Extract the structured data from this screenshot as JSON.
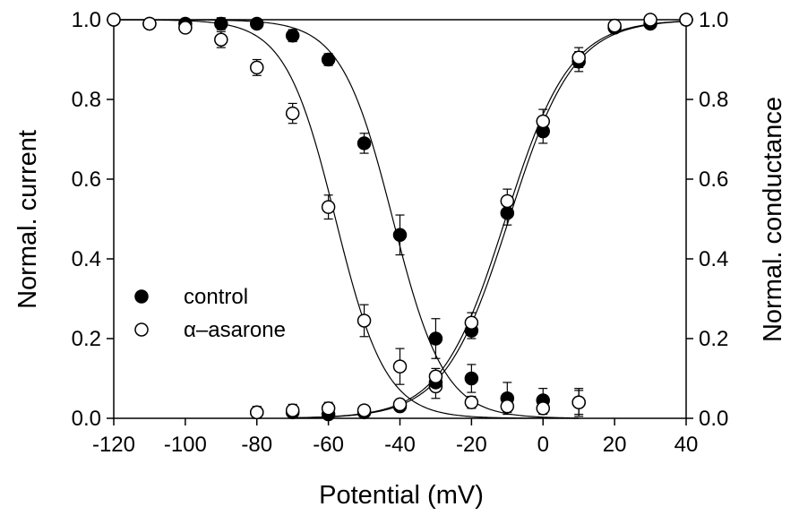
{
  "chart_data": {
    "type": "scatter",
    "xlabel": "Potential (mV)",
    "ylabel_left": "Normal. current",
    "ylabel_right": "Normal. conductance",
    "xlim": [
      -120,
      40
    ],
    "ylim": [
      0,
      1
    ],
    "x_ticks": [
      -120,
      -100,
      -80,
      -60,
      -40,
      -20,
      0,
      20,
      40
    ],
    "x_tick_labels": [
      "-120",
      "-100",
      "-80",
      "-60",
      "-40",
      "-20",
      "0",
      "20",
      "40"
    ],
    "y_ticks": [
      0,
      0.2,
      0.4,
      0.6,
      0.8,
      1.0
    ],
    "y_tick_labels": [
      "0.0",
      "0.2",
      "0.4",
      "0.6",
      "0.8",
      "1.0"
    ],
    "legend": [
      {
        "label": "control",
        "marker": "filled-circle"
      },
      {
        "label": "α–asarone",
        "marker": "open-circle"
      }
    ],
    "legend_position": "lower-left",
    "series": [
      {
        "name": "control inactivation (normal. current)",
        "marker": "filled",
        "x": [
          -120,
          -110,
          -100,
          -90,
          -80,
          -70,
          -60,
          -50,
          -40,
          -30,
          -20,
          -10,
          0,
          10
        ],
        "y": [
          1.0,
          0.99,
          0.99,
          0.99,
          0.99,
          0.96,
          0.9,
          0.69,
          0.46,
          0.2,
          0.1,
          0.05,
          0.045,
          0.04
        ],
        "err": [
          0.005,
          0.005,
          0.01,
          0.015,
          0.01,
          0.015,
          0.015,
          0.025,
          0.05,
          0.05,
          0.035,
          0.04,
          0.03,
          0.03
        ]
      },
      {
        "name": "α–asarone inactivation (normal. current)",
        "marker": "open",
        "x": [
          -120,
          -110,
          -100,
          -90,
          -80,
          -70,
          -60,
          -50,
          -40,
          -30,
          -20,
          -10,
          0,
          10
        ],
        "y": [
          1.0,
          0.99,
          0.98,
          0.95,
          0.88,
          0.765,
          0.53,
          0.245,
          0.13,
          0.08,
          0.04,
          0.03,
          0.025,
          0.04
        ],
        "err": [
          0.005,
          0.005,
          0.01,
          0.02,
          0.02,
          0.025,
          0.03,
          0.04,
          0.045,
          0.03,
          0.015,
          0.015,
          0.015,
          0.035
        ]
      },
      {
        "name": "control activation (normal. conductance)",
        "marker": "filled",
        "x": [
          -80,
          -70,
          -60,
          -50,
          -40,
          -30,
          -20,
          -10,
          0,
          10,
          20,
          30,
          40
        ],
        "y": [
          0.015,
          0.015,
          0.01,
          0.015,
          0.03,
          0.09,
          0.22,
          0.515,
          0.72,
          0.895,
          0.98,
          0.99,
          1.0
        ],
        "err": [
          0.01,
          0.01,
          0.01,
          0.01,
          0.01,
          0.015,
          0.02,
          0.03,
          0.03,
          0.025,
          0.01,
          0.01,
          0.005
        ]
      },
      {
        "name": "α–asarone activation (normal. conductance)",
        "marker": "open",
        "x": [
          -80,
          -70,
          -60,
          -50,
          -40,
          -30,
          -20,
          -10,
          0,
          10,
          20,
          30,
          40
        ],
        "y": [
          0.015,
          0.02,
          0.025,
          0.02,
          0.035,
          0.105,
          0.24,
          0.545,
          0.745,
          0.905,
          0.985,
          1.0,
          1.0
        ],
        "err": [
          0.015,
          0.015,
          0.015,
          0.01,
          0.01,
          0.02,
          0.025,
          0.03,
          0.03,
          0.025,
          0.015,
          0.01,
          0.005
        ]
      }
    ],
    "fits": [
      {
        "name": "control inactivation fit",
        "type": "boltzmann_decreasing",
        "v_half": -42,
        "k": 7.2,
        "x_range": [
          -120,
          10
        ]
      },
      {
        "name": "α–asarone inactivation fit",
        "type": "boltzmann_decreasing",
        "v_half": -58,
        "k": 7.0,
        "x_range": [
          -120,
          10
        ]
      },
      {
        "name": "control activation fit",
        "type": "boltzmann_increasing",
        "v_half": -9.5,
        "k": 9.0,
        "x_range": [
          -70,
          40
        ]
      },
      {
        "name": "α–asarone activation fit",
        "type": "boltzmann_increasing",
        "v_half": -10.5,
        "k": 9.0,
        "x_range": [
          -70,
          40
        ]
      }
    ]
  }
}
